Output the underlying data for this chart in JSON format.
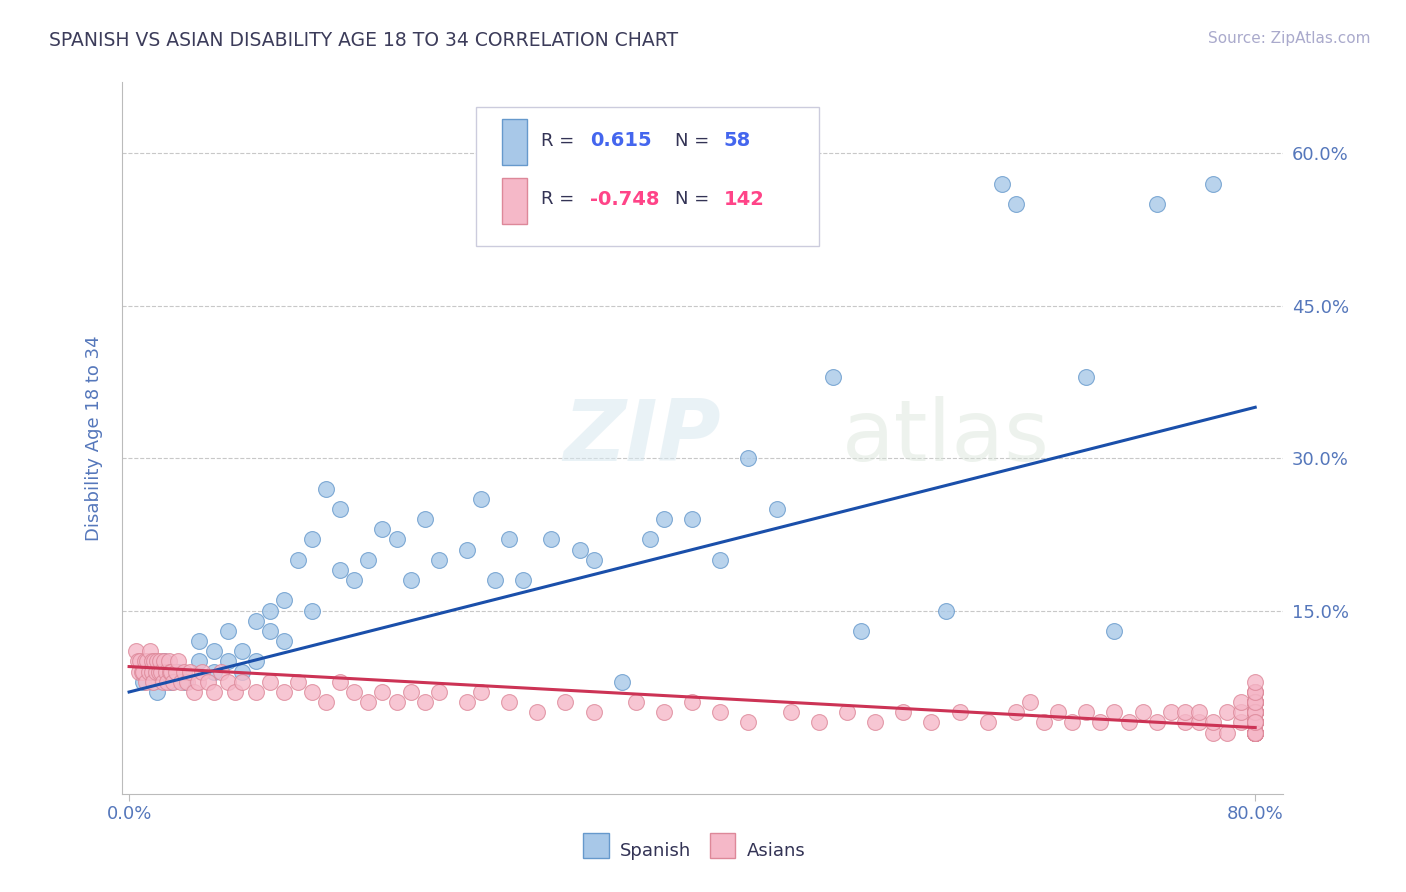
{
  "title": "SPANISH VS ASIAN DISABILITY AGE 18 TO 34 CORRELATION CHART",
  "source_text": "Source: ZipAtlas.com",
  "ylabel": "Disability Age 18 to 34",
  "xlim": [
    -0.005,
    0.82
  ],
  "ylim": [
    -0.03,
    0.67
  ],
  "ytick_positions": [
    0.15,
    0.3,
    0.45,
    0.6
  ],
  "ytick_labels": [
    "15.0%",
    "30.0%",
    "45.0%",
    "60.0%"
  ],
  "xtick_positions": [
    0.0,
    0.8
  ],
  "xtick_labels": [
    "0.0%",
    "80.0%"
  ],
  "title_color": "#3c3c5a",
  "grid_color": "#c8c8c8",
  "watermark": "ZIPatlas",
  "spanish_color": "#a8c8e8",
  "spanish_edge_color": "#6699cc",
  "asian_color": "#f5b8c8",
  "asian_edge_color": "#dd8899",
  "spanish_line_color": "#1a4faa",
  "asian_line_color": "#cc3355",
  "tick_label_color": "#5577bb",
  "ylabel_color": "#5577bb",
  "source_color": "#aaaacc",
  "legend_text_color": "#333355",
  "legend_value_color": "#4466ee",
  "legend_r2_color": "#ff4488",
  "spanish_r": 0.615,
  "asian_r": -0.748,
  "spanish_n": 58,
  "asian_n": 142,
  "sp_line_x0": 0.0,
  "sp_line_y0": 0.07,
  "sp_line_x1": 0.8,
  "sp_line_y1": 0.35,
  "as_line_x0": 0.0,
  "as_line_y0": 0.095,
  "as_line_x1": 0.8,
  "as_line_y1": 0.035,
  "spanish_x": [
    0.01,
    0.015,
    0.02,
    0.025,
    0.03,
    0.035,
    0.04,
    0.05,
    0.05,
    0.06,
    0.06,
    0.07,
    0.07,
    0.08,
    0.08,
    0.09,
    0.09,
    0.1,
    0.1,
    0.11,
    0.11,
    0.12,
    0.13,
    0.13,
    0.14,
    0.15,
    0.15,
    0.16,
    0.17,
    0.18,
    0.19,
    0.2,
    0.21,
    0.22,
    0.24,
    0.25,
    0.26,
    0.27,
    0.28,
    0.3,
    0.32,
    0.33,
    0.35,
    0.37,
    0.38,
    0.4,
    0.42,
    0.44,
    0.46,
    0.5,
    0.52,
    0.58,
    0.62,
    0.63,
    0.68,
    0.7,
    0.73,
    0.77
  ],
  "spanish_y": [
    0.08,
    0.09,
    0.07,
    0.1,
    0.08,
    0.09,
    0.08,
    0.1,
    0.12,
    0.09,
    0.11,
    0.1,
    0.13,
    0.09,
    0.11,
    0.14,
    0.1,
    0.13,
    0.15,
    0.12,
    0.16,
    0.2,
    0.15,
    0.22,
    0.27,
    0.19,
    0.25,
    0.18,
    0.2,
    0.23,
    0.22,
    0.18,
    0.24,
    0.2,
    0.21,
    0.26,
    0.18,
    0.22,
    0.18,
    0.22,
    0.21,
    0.2,
    0.08,
    0.22,
    0.24,
    0.24,
    0.2,
    0.3,
    0.25,
    0.38,
    0.13,
    0.15,
    0.57,
    0.55,
    0.38,
    0.13,
    0.55,
    0.57
  ],
  "asian_x": [
    0.005,
    0.006,
    0.007,
    0.008,
    0.009,
    0.01,
    0.011,
    0.012,
    0.013,
    0.014,
    0.015,
    0.016,
    0.016,
    0.017,
    0.018,
    0.019,
    0.02,
    0.021,
    0.022,
    0.023,
    0.024,
    0.025,
    0.026,
    0.027,
    0.028,
    0.029,
    0.03,
    0.031,
    0.033,
    0.035,
    0.037,
    0.039,
    0.041,
    0.043,
    0.046,
    0.049,
    0.052,
    0.056,
    0.06,
    0.065,
    0.07,
    0.075,
    0.08,
    0.09,
    0.1,
    0.11,
    0.12,
    0.13,
    0.14,
    0.15,
    0.16,
    0.17,
    0.18,
    0.19,
    0.2,
    0.21,
    0.22,
    0.24,
    0.25,
    0.27,
    0.29,
    0.31,
    0.33,
    0.36,
    0.38,
    0.4,
    0.42,
    0.44,
    0.47,
    0.49,
    0.51,
    0.53,
    0.55,
    0.57,
    0.59,
    0.61,
    0.63,
    0.64,
    0.65,
    0.66,
    0.67,
    0.68,
    0.69,
    0.7,
    0.71,
    0.72,
    0.73,
    0.74,
    0.75,
    0.75,
    0.76,
    0.76,
    0.77,
    0.77,
    0.78,
    0.78,
    0.79,
    0.79,
    0.79,
    0.8,
    0.8,
    0.8,
    0.8,
    0.8,
    0.8,
    0.8,
    0.8,
    0.8,
    0.8,
    0.8,
    0.8,
    0.8,
    0.8,
    0.8,
    0.8,
    0.8,
    0.8,
    0.8,
    0.8,
    0.8,
    0.8,
    0.8,
    0.8,
    0.8,
    0.8,
    0.8,
    0.8,
    0.8,
    0.8,
    0.8,
    0.8,
    0.8,
    0.8,
    0.8,
    0.8,
    0.8,
    0.8,
    0.8,
    0.8,
    0.8,
    0.8,
    0.8
  ],
  "asian_y": [
    0.11,
    0.1,
    0.09,
    0.1,
    0.09,
    0.09,
    0.1,
    0.08,
    0.1,
    0.09,
    0.11,
    0.09,
    0.1,
    0.08,
    0.1,
    0.09,
    0.1,
    0.09,
    0.1,
    0.09,
    0.08,
    0.1,
    0.09,
    0.08,
    0.1,
    0.09,
    0.09,
    0.08,
    0.09,
    0.1,
    0.08,
    0.09,
    0.08,
    0.09,
    0.07,
    0.08,
    0.09,
    0.08,
    0.07,
    0.09,
    0.08,
    0.07,
    0.08,
    0.07,
    0.08,
    0.07,
    0.08,
    0.07,
    0.06,
    0.08,
    0.07,
    0.06,
    0.07,
    0.06,
    0.07,
    0.06,
    0.07,
    0.06,
    0.07,
    0.06,
    0.05,
    0.06,
    0.05,
    0.06,
    0.05,
    0.06,
    0.05,
    0.04,
    0.05,
    0.04,
    0.05,
    0.04,
    0.05,
    0.04,
    0.05,
    0.04,
    0.05,
    0.06,
    0.04,
    0.05,
    0.04,
    0.05,
    0.04,
    0.05,
    0.04,
    0.05,
    0.04,
    0.05,
    0.04,
    0.05,
    0.04,
    0.05,
    0.03,
    0.04,
    0.05,
    0.03,
    0.04,
    0.05,
    0.06,
    0.03,
    0.04,
    0.05,
    0.06,
    0.03,
    0.04,
    0.05,
    0.03,
    0.04,
    0.05,
    0.06,
    0.03,
    0.04,
    0.05,
    0.03,
    0.04,
    0.05,
    0.06,
    0.03,
    0.04,
    0.05,
    0.06,
    0.07,
    0.03,
    0.04,
    0.05,
    0.06,
    0.07,
    0.03,
    0.04,
    0.05,
    0.06,
    0.03,
    0.04,
    0.05,
    0.03,
    0.04,
    0.05,
    0.06,
    0.07,
    0.08,
    0.03,
    0.04
  ]
}
